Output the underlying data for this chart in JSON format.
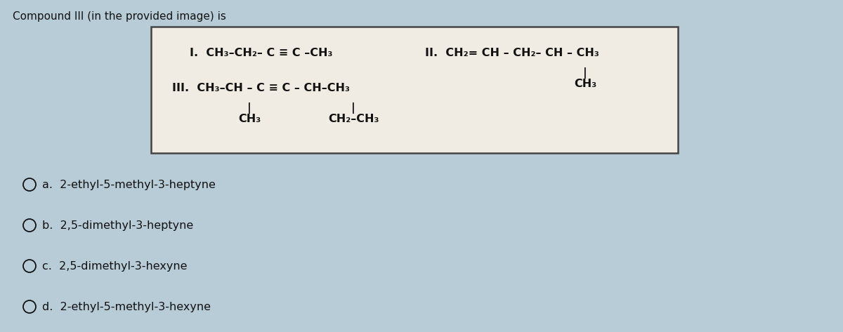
{
  "title": "Compound III (in the provided image) is",
  "title_fontsize": 11,
  "bg_color": "#b8ccd8",
  "box_bg_color": "#f0ece4",
  "box_border_color": "#444444",
  "text_color": "#111111",
  "formula_fontsize": 11.5,
  "options_fontsize": 11.5,
  "options": [
    "a.  2-ethyl-5-methyl-3-heptyne",
    "b.  2,5-dimethyl-3-heptyne",
    "c.  2,5-dimethyl-3-hexyne",
    "d.  2-ethyl-5-methyl-3-hexyne"
  ]
}
